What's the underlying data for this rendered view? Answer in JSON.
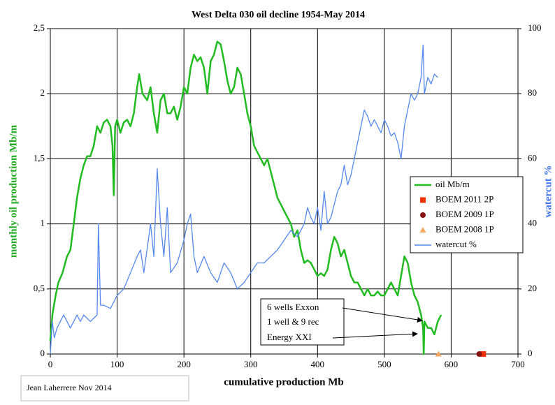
{
  "chart_data": {
    "type": "line",
    "title": "West Delta 030 oil decline 1954-May 2014",
    "x_label": "cumulative production Mb",
    "y_label": "monthly oil production Mb/m",
    "y2_label": "watercut %",
    "xlim": [
      0,
      700
    ],
    "xticks": [
      0,
      100,
      200,
      300,
      400,
      500,
      600,
      700
    ],
    "ylim": [
      0,
      2.5
    ],
    "yticks": [
      0,
      {
        "value": 0.5,
        "label": "0,5"
      },
      1,
      {
        "value": 1.5,
        "label": "1,5"
      },
      2,
      {
        "value": 2.5,
        "label": "2,5"
      }
    ],
    "y2lim": [
      0,
      100
    ],
    "y2ticks": [
      0,
      20,
      40,
      60,
      80,
      100
    ],
    "grid": true,
    "series": [
      {
        "name": "oil Mb/m",
        "color": "#22bb22",
        "marker": "line",
        "x": [
          0,
          3,
          8,
          12,
          18,
          25,
          30,
          35,
          40,
          45,
          50,
          55,
          60,
          65,
          70,
          75,
          80,
          85,
          90,
          93,
          95,
          97,
          100,
          105,
          110,
          115,
          120,
          125,
          130,
          133,
          138,
          145,
          150,
          155,
          160,
          165,
          170,
          175,
          180,
          185,
          190,
          195,
          200,
          205,
          210,
          215,
          220,
          225,
          230,
          235,
          240,
          245,
          250,
          255,
          260,
          265,
          270,
          275,
          280,
          285,
          290,
          295,
          300,
          305,
          310,
          315,
          320,
          325,
          330,
          335,
          340,
          345,
          350,
          355,
          360,
          365,
          370,
          375,
          380,
          385,
          390,
          395,
          400,
          405,
          410,
          415,
          420,
          425,
          430,
          435,
          440,
          445,
          450,
          455,
          460,
          465,
          470,
          475,
          480,
          485,
          490,
          495,
          500,
          505,
          510,
          515,
          520,
          525,
          530,
          535,
          540,
          545,
          550,
          555,
          558,
          559,
          560,
          565,
          570,
          575,
          580,
          585
        ],
        "values": [
          0.1,
          0.3,
          0.45,
          0.55,
          0.62,
          0.75,
          0.8,
          1.0,
          1.2,
          1.35,
          1.45,
          1.52,
          1.52,
          1.6,
          1.75,
          1.7,
          1.78,
          1.8,
          1.75,
          1.6,
          1.22,
          1.75,
          1.8,
          1.7,
          1.78,
          1.8,
          1.75,
          1.85,
          2.05,
          2.15,
          2.0,
          1.95,
          2.05,
          1.85,
          1.7,
          1.95,
          2.0,
          1.85,
          1.85,
          1.9,
          1.8,
          1.9,
          2.05,
          2.0,
          2.2,
          2.3,
          2.25,
          2.28,
          2.2,
          2.0,
          2.25,
          2.3,
          2.4,
          2.38,
          2.25,
          2.1,
          2.0,
          2.05,
          2.2,
          2.15,
          2.0,
          1.85,
          1.75,
          1.6,
          1.55,
          1.5,
          1.45,
          1.5,
          1.4,
          1.3,
          1.2,
          1.15,
          1.1,
          1.05,
          1.0,
          0.9,
          0.95,
          0.8,
          0.7,
          0.72,
          0.7,
          0.65,
          0.6,
          0.62,
          0.6,
          0.65,
          0.8,
          0.9,
          0.85,
          0.75,
          0.8,
          0.7,
          0.6,
          0.55,
          0.55,
          0.5,
          0.45,
          0.5,
          0.45,
          0.45,
          0.48,
          0.45,
          0.45,
          0.5,
          0.55,
          0.5,
          0.45,
          0.6,
          0.75,
          0.7,
          0.55,
          0.45,
          0.4,
          0.3,
          0.2,
          0,
          0.25,
          0.2,
          0.2,
          0.15,
          0.25,
          0.3
        ]
      },
      {
        "name": "BOEM 2011 2P",
        "color": "#ee3300",
        "marker": "square",
        "x": [
          648
        ],
        "values": [
          0
        ]
      },
      {
        "name": "BOEM 2009 1P",
        "color": "#881111",
        "marker": "circle",
        "x": [
          642
        ],
        "values": [
          0
        ]
      },
      {
        "name": "BOEM 2008 1P",
        "color": "#f5a860",
        "marker": "triangle",
        "x": [
          581
        ],
        "values": [
          0
        ]
      },
      {
        "name": "watercut %",
        "color": "#5588ee",
        "marker": "line",
        "axis": "y2",
        "x": [
          0,
          3,
          6,
          10,
          15,
          20,
          25,
          30,
          35,
          40,
          45,
          50,
          60,
          70,
          72,
          75,
          80,
          90,
          95,
          100,
          110,
          120,
          130,
          135,
          140,
          150,
          155,
          160,
          165,
          170,
          175,
          180,
          190,
          200,
          205,
          210,
          215,
          220,
          230,
          240,
          250,
          260,
          270,
          280,
          290,
          300,
          310,
          320,
          330,
          340,
          350,
          360,
          370,
          380,
          385,
          390,
          395,
          400,
          405,
          410,
          415,
          420,
          430,
          435,
          440,
          445,
          450,
          455,
          460,
          465,
          470,
          475,
          480,
          485,
          490,
          495,
          500,
          505,
          510,
          515,
          520,
          525,
          530,
          535,
          540,
          545,
          550,
          555,
          558,
          560,
          565,
          570,
          575,
          580
        ],
        "values": [
          0,
          10,
          5,
          8,
          10,
          12,
          10,
          8,
          10,
          12,
          10,
          12,
          10,
          12,
          40,
          15,
          15,
          14,
          16,
          18,
          20,
          25,
          30,
          32,
          25,
          40,
          30,
          57,
          40,
          30,
          45,
          25,
          28,
          35,
          40,
          43,
          30,
          25,
          30,
          25,
          22,
          28,
          25,
          20,
          22,
          25,
          28,
          28,
          30,
          32,
          35,
          38,
          36,
          40,
          45,
          42,
          40,
          45,
          38,
          50,
          40,
          42,
          50,
          52,
          58,
          52,
          55,
          60,
          65,
          70,
          75,
          73,
          70,
          72,
          70,
          68,
          72,
          70,
          67,
          68,
          65,
          60,
          70,
          75,
          80,
          78,
          80,
          85,
          95,
          80,
          85,
          83,
          86,
          85
        ]
      }
    ],
    "annotations": [
      "6 wells Exxon",
      "1 well & 9 rec",
      "Energy XXI"
    ],
    "credit": "Jean Laherrere Nov 2014"
  }
}
